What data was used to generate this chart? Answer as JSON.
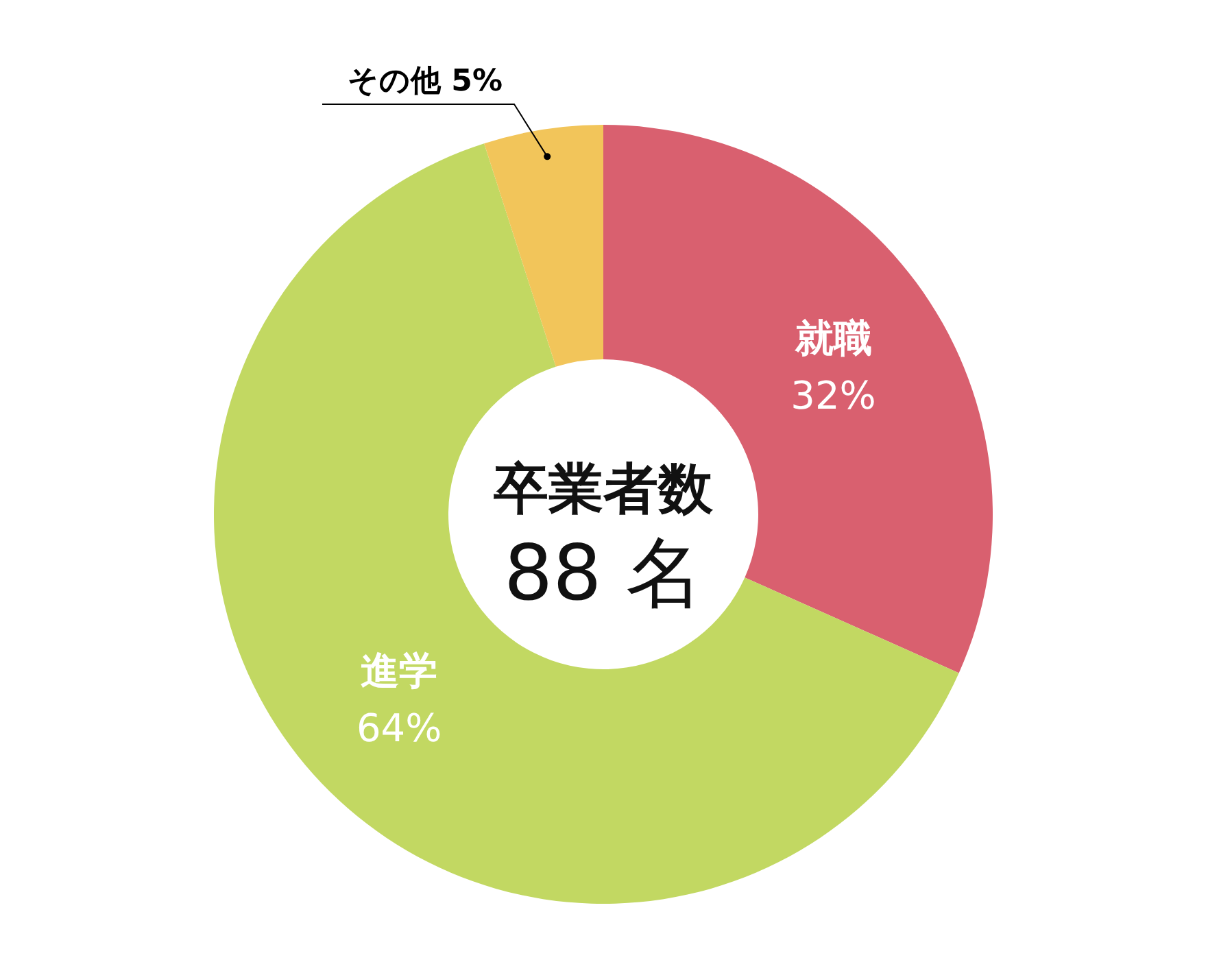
{
  "chart_data": {
    "type": "donut",
    "title": "卒業者数",
    "subtitle": "88 名",
    "categories": [
      "就職",
      "進学",
      "その他"
    ],
    "values": [
      32,
      64,
      5
    ],
    "value_labels": [
      "32%",
      "64%",
      "5%"
    ],
    "colors": [
      "#d9606f",
      "#c2d862",
      "#f2c55a"
    ],
    "legend": false
  }
}
